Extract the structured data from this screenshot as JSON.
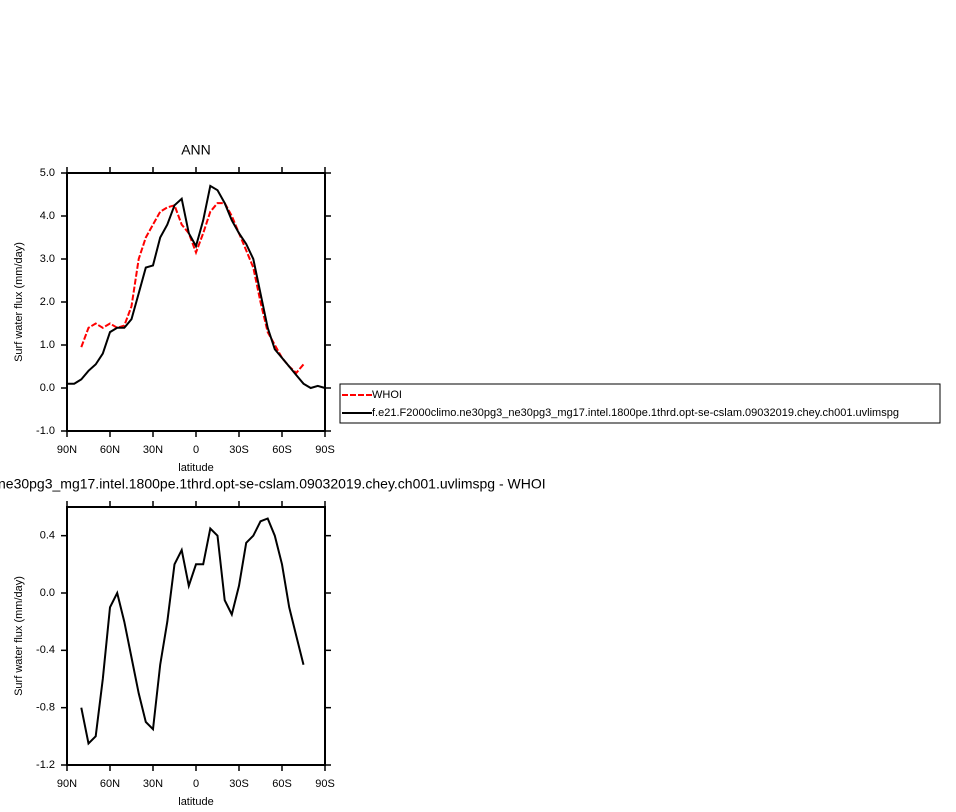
{
  "chart_data": [
    {
      "type": "line",
      "title": "ANN",
      "xlabel": "latitude",
      "ylabel": "Surf water flux (mm/day)",
      "x": [
        90,
        85,
        80,
        75,
        70,
        65,
        60,
        55,
        50,
        45,
        40,
        35,
        30,
        25,
        20,
        15,
        10,
        5,
        0,
        -5,
        -10,
        -15,
        -20,
        -25,
        -30,
        -35,
        -40,
        -45,
        -50,
        -55,
        -60,
        -65,
        -70,
        -75,
        -80,
        -85,
        -90
      ],
      "series": [
        {
          "name": "WHOI",
          "color": "#ff0000",
          "line_style": "dashed",
          "values": [
            null,
            null,
            0.95,
            1.4,
            1.5,
            1.4,
            1.5,
            1.4,
            1.45,
            1.9,
            3.0,
            3.5,
            3.8,
            4.1,
            4.2,
            4.25,
            3.8,
            3.6,
            3.15,
            3.6,
            4.1,
            4.3,
            4.3,
            4.0,
            3.6,
            3.2,
            2.8,
            2.0,
            1.3,
            1.0,
            0.7,
            0.5,
            0.35,
            0.55,
            null,
            null,
            null
          ]
        },
        {
          "name": "f.e21.F2000climo.ne30pg3_ne30pg3_mg17.intel.1800pe.1thrd.opt-se-cslam.09032019.chey.ch001.uvlimspg",
          "color": "#000000",
          "line_style": "solid",
          "values": [
            0.1,
            0.1,
            0.2,
            0.4,
            0.55,
            0.8,
            1.3,
            1.4,
            1.4,
            1.6,
            2.2,
            2.8,
            2.85,
            3.5,
            3.8,
            4.25,
            4.4,
            3.6,
            3.3,
            3.9,
            4.7,
            4.6,
            4.3,
            3.9,
            3.6,
            3.35,
            3.0,
            2.2,
            1.4,
            0.9,
            0.7,
            0.5,
            0.3,
            0.1,
            0.0,
            0.05,
            0.0
          ]
        }
      ],
      "xlim": [
        90,
        -90
      ],
      "xticks": [
        {
          "value": 90,
          "label": "90N"
        },
        {
          "value": 60,
          "label": "60N"
        },
        {
          "value": 30,
          "label": "30N"
        },
        0,
        {
          "value": -30,
          "label": "30S"
        },
        {
          "value": -60,
          "label": "60S"
        },
        {
          "value": -90,
          "label": "90S"
        }
      ],
      "ylim": [
        -1,
        5
      ],
      "yticks": [
        {
          "value": -1,
          "label": "-1.0"
        },
        {
          "value": 0,
          "label": "0.0"
        },
        {
          "value": 1,
          "label": "1.0"
        },
        {
          "value": 2,
          "label": "2.0"
        },
        {
          "value": 3,
          "label": "3.0"
        },
        {
          "value": 4,
          "label": "4.0"
        },
        {
          "value": 5,
          "label": "5.0"
        }
      ],
      "legend": "right"
    },
    {
      "type": "line",
      "title": "ne30pg3_mg17.intel.1800pe.1thrd.opt-se-cslam.09032019.chey.ch001.uvlimspg - WHOI",
      "xlabel": "latitude",
      "ylabel": "Surf water flux (mm/day)",
      "x": [
        80,
        75,
        70,
        65,
        60,
        55,
        50,
        45,
        40,
        35,
        30,
        25,
        20,
        15,
        10,
        5,
        0,
        -5,
        -10,
        -15,
        -20,
        -25,
        -30,
        -35,
        -40,
        -45,
        -50,
        -55,
        -60,
        -65,
        -70,
        -75
      ],
      "series": [
        {
          "color": "#000000",
          "line_style": "solid",
          "values": [
            -0.8,
            -1.05,
            -1.0,
            -0.6,
            -0.1,
            0.0,
            -0.2,
            -0.45,
            -0.7,
            -0.9,
            -0.95,
            -0.5,
            -0.2,
            0.2,
            0.3,
            0.05,
            0.2,
            0.2,
            0.45,
            0.4,
            -0.05,
            -0.15,
            0.05,
            0.35,
            0.4,
            0.5,
            0.52,
            0.4,
            0.2,
            -0.1,
            -0.3,
            -0.5
          ]
        }
      ],
      "xlim": [
        90,
        -90
      ],
      "xticks": [
        {
          "value": 90,
          "label": "90N"
        },
        {
          "value": 60,
          "label": "60N"
        },
        {
          "value": 30,
          "label": "30N"
        },
        0,
        {
          "value": -30,
          "label": "30S"
        },
        {
          "value": -60,
          "label": "60S"
        },
        {
          "value": -90,
          "label": "90S"
        }
      ],
      "ylim": [
        -1.2,
        0.6
      ],
      "yticks": [
        -1.2,
        -0.8,
        -0.4,
        {
          "value": 0,
          "label": "0.0"
        },
        0.4
      ]
    }
  ]
}
